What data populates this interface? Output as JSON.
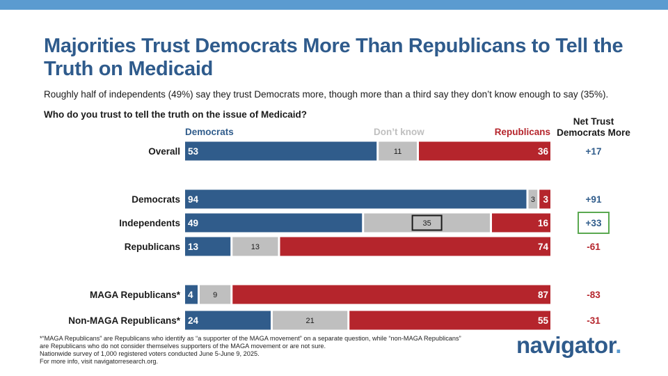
{
  "title": "Majorities Trust Democrats More Than Republicans to Tell the Truth on Medicaid",
  "subtitle": "Roughly half of independents (49%) say they trust Democrats more, though more than a third say they don’t know enough to say (35%).",
  "question": "Who do you trust to tell the truth on the issue of Medicaid?",
  "colors": {
    "democrats": "#305c8b",
    "dont_know": "#bfbfbf",
    "republicans": "#b5252c",
    "net_positive": "#305c8b",
    "net_negative": "#b5252c",
    "highlight_green": "#5aa850",
    "highlight_black": "#1a1a1a",
    "brand": "#2f5b8c",
    "accent": "#5b9bd0"
  },
  "chart_data": {
    "type": "bar",
    "orientation": "horizontal-stacked-100",
    "legend": {
      "democrats": "Democrats",
      "dont_know": "Don’t know",
      "republicans": "Republicans"
    },
    "net_header": [
      "Net Trust",
      "Democrats More"
    ],
    "categories": [
      "Overall",
      "Democrats",
      "Independents",
      "Republicans",
      "MAGA Republicans*",
      "Non-MAGA Republicans*"
    ],
    "series": [
      {
        "name": "Democrats",
        "values": [
          53,
          94,
          49,
          13,
          4,
          24
        ]
      },
      {
        "name": "Don’t know",
        "values": [
          11,
          3,
          35,
          13,
          9,
          21
        ]
      },
      {
        "name": "Republicans",
        "values": [
          36,
          3,
          16,
          74,
          87,
          55
        ]
      }
    ],
    "net": [
      "+17",
      "+91",
      "+33",
      "-61",
      "-83",
      "-31"
    ],
    "highlighted_net": "Independents",
    "highlighted_dont_know": "Independents"
  },
  "footnote": {
    "line1": "*“MAGA Republicans” are Republicans who identify as “a supporter of the MAGA movement” on a separate question, while “non-MAGA Republicans” are Republicans who do not consider themselves supporters of the MAGA movement or are not sure.",
    "line2": "Nationwide survey of 1,000 registered voters conducted June 5-June 9, 2025.",
    "line3": "For more info, visit navigatorresearch.org."
  },
  "logo": {
    "text": "navigator",
    "dot": "."
  }
}
